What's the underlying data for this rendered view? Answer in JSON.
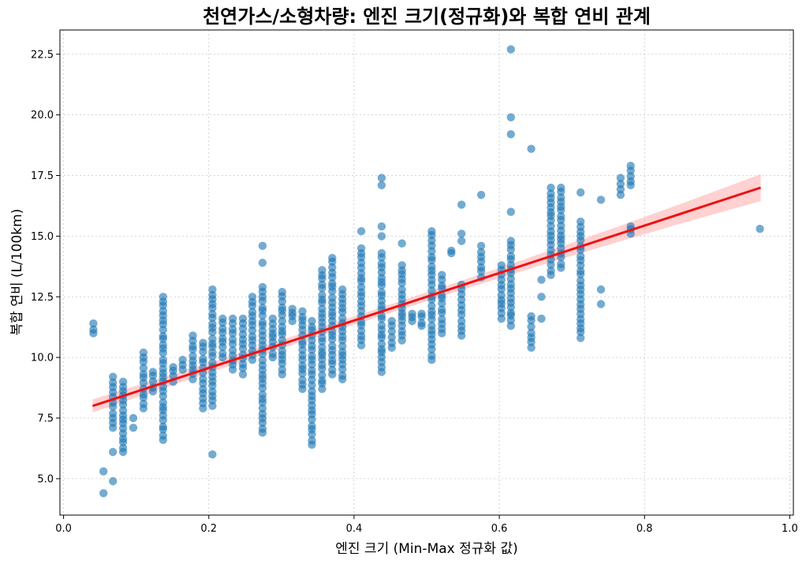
{
  "chart_data": {
    "type": "scatter",
    "title": "천연가스/소형차량: 엔진 크기(정규화)와 복합 연비 관계",
    "xlabel": "엔진 크기 (Min-Max 정규화 값)",
    "ylabel": "복합 연비 (L/100km)",
    "xlim": [
      -0.005,
      1.005
    ],
    "ylim": [
      3.5,
      23.5
    ],
    "xticks": [
      0.0,
      0.2,
      0.4,
      0.6,
      0.8,
      1.0
    ],
    "xtick_labels": [
      "0.0",
      "0.2",
      "0.4",
      "0.6",
      "0.8",
      "1.0"
    ],
    "yticks": [
      5.0,
      7.5,
      10.0,
      12.5,
      15.0,
      17.5,
      20.0,
      22.5
    ],
    "ytick_labels": [
      "5.0",
      "7.5",
      "10.0",
      "12.5",
      "15.0",
      "17.5",
      "20.0",
      "22.5"
    ],
    "grid": true,
    "point_color": "#1f77b4",
    "regression": {
      "x": [
        0.04,
        0.96
      ],
      "y": [
        8.0,
        17.0
      ],
      "ci_halfwidth_at_ends": [
        0.3,
        0.5
      ],
      "color": "#ee1111",
      "ci_color": "#ffb3b3"
    },
    "columns": [
      {
        "x": 0.041,
        "min": 11.0,
        "max": 11.4
      },
      {
        "x": 0.055,
        "values": [
          5.3,
          4.4
        ]
      },
      {
        "x": 0.068,
        "min": 7.1,
        "max": 9.2
      },
      {
        "x": 0.068,
        "values": [
          6.1,
          4.9
        ]
      },
      {
        "x": 0.082,
        "min": 6.1,
        "max": 9.0
      },
      {
        "x": 0.096,
        "values": [
          7.1,
          7.5
        ]
      },
      {
        "x": 0.11,
        "min": 7.9,
        "max": 10.2
      },
      {
        "x": 0.123,
        "min": 8.6,
        "max": 9.4
      },
      {
        "x": 0.137,
        "min": 6.6,
        "max": 12.5
      },
      {
        "x": 0.151,
        "min": 9.0,
        "max": 9.6
      },
      {
        "x": 0.164,
        "min": 9.5,
        "max": 9.9
      },
      {
        "x": 0.178,
        "min": 9.1,
        "max": 10.9
      },
      {
        "x": 0.192,
        "min": 7.9,
        "max": 10.6
      },
      {
        "x": 0.205,
        "min": 8.0,
        "max": 12.8
      },
      {
        "x": 0.205,
        "values": [
          6.0
        ]
      },
      {
        "x": 0.219,
        "min": 10.0,
        "max": 11.6
      },
      {
        "x": 0.233,
        "min": 9.5,
        "max": 11.6
      },
      {
        "x": 0.247,
        "min": 9.3,
        "max": 11.6
      },
      {
        "x": 0.26,
        "min": 9.9,
        "max": 12.5
      },
      {
        "x": 0.274,
        "min": 6.9,
        "max": 12.9
      },
      {
        "x": 0.274,
        "values": [
          14.6,
          13.9
        ]
      },
      {
        "x": 0.288,
        "min": 10.0,
        "max": 11.6
      },
      {
        "x": 0.301,
        "min": 9.3,
        "max": 12.7
      },
      {
        "x": 0.315,
        "min": 11.5,
        "max": 12.0
      },
      {
        "x": 0.329,
        "min": 8.7,
        "max": 11.9
      },
      {
        "x": 0.342,
        "min": 6.4,
        "max": 11.5
      },
      {
        "x": 0.356,
        "min": 8.7,
        "max": 13.6
      },
      {
        "x": 0.37,
        "min": 9.3,
        "max": 14.1
      },
      {
        "x": 0.384,
        "min": 9.1,
        "max": 12.8
      },
      {
        "x": 0.41,
        "min": 10.5,
        "max": 14.5
      },
      {
        "x": 0.41,
        "values": [
          15.2
        ]
      },
      {
        "x": 0.438,
        "min": 9.4,
        "max": 14.3
      },
      {
        "x": 0.438,
        "values": [
          17.1,
          17.4,
          15.4,
          15.0
        ]
      },
      {
        "x": 0.452,
        "min": 10.4,
        "max": 11.5
      },
      {
        "x": 0.466,
        "min": 10.7,
        "max": 13.8
      },
      {
        "x": 0.466,
        "values": [
          14.7
        ]
      },
      {
        "x": 0.48,
        "min": 11.5,
        "max": 11.8
      },
      {
        "x": 0.493,
        "min": 11.3,
        "max": 11.8
      },
      {
        "x": 0.507,
        "min": 9.9,
        "max": 15.2
      },
      {
        "x": 0.521,
        "min": 11.0,
        "max": 13.4
      },
      {
        "x": 0.534,
        "min": 14.3,
        "max": 14.4
      },
      {
        "x": 0.548,
        "min": 10.9,
        "max": 13.0
      },
      {
        "x": 0.548,
        "values": [
          16.3,
          15.1,
          14.8
        ]
      },
      {
        "x": 0.575,
        "min": 13.3,
        "max": 14.6
      },
      {
        "x": 0.575,
        "values": [
          16.7
        ]
      },
      {
        "x": 0.603,
        "min": 11.6,
        "max": 13.8
      },
      {
        "x": 0.616,
        "min": 11.3,
        "max": 14.8
      },
      {
        "x": 0.616,
        "values": [
          16.0,
          19.2,
          19.9,
          22.7
        ]
      },
      {
        "x": 0.644,
        "min": 10.4,
        "max": 11.7
      },
      {
        "x": 0.644,
        "values": [
          18.6
        ]
      },
      {
        "x": 0.658,
        "values": [
          13.2,
          12.5,
          11.6
        ]
      },
      {
        "x": 0.671,
        "min": 13.4,
        "max": 17.0
      },
      {
        "x": 0.685,
        "min": 13.7,
        "max": 17.0
      },
      {
        "x": 0.712,
        "min": 10.8,
        "max": 15.6
      },
      {
        "x": 0.712,
        "values": [
          16.8
        ]
      },
      {
        "x": 0.74,
        "values": [
          12.2,
          12.8,
          16.5
        ]
      },
      {
        "x": 0.767,
        "min": 16.7,
        "max": 17.4
      },
      {
        "x": 0.781,
        "min": 15.1,
        "max": 15.4
      },
      {
        "x": 0.781,
        "min": 17.1,
        "max": 17.9
      },
      {
        "x": 0.959,
        "values": [
          15.3
        ]
      }
    ]
  }
}
